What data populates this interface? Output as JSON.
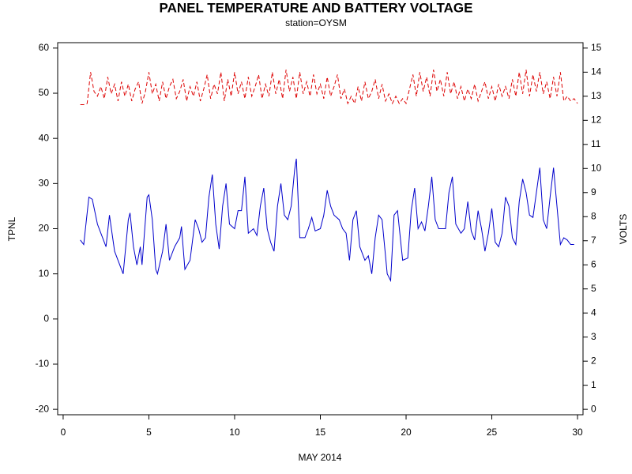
{
  "chart_data": {
    "type": "line",
    "title": "PANEL TEMPERATURE AND BATTERY VOLTAGE",
    "subtitle": "station=OYSM",
    "x_label": "MAY 2014",
    "y_label": "TPNL",
    "y2_label": "VOLTS",
    "xlim": [
      -0.32,
      30.32
    ],
    "xticks": [
      0,
      5,
      10,
      15,
      20,
      25,
      30
    ],
    "ylim": [
      -21.2,
      61.2
    ],
    "yticks": [
      -20,
      -10,
      0,
      10,
      20,
      30,
      40,
      50,
      60
    ],
    "y2lim": [
      -0.225,
      15.225
    ],
    "y2ticks": [
      0,
      1,
      2,
      3,
      4,
      5,
      6,
      7,
      8,
      9,
      10,
      11,
      12,
      13,
      14,
      15
    ],
    "series": [
      {
        "name": "TPNL",
        "color": "#0000cc",
        "dashed": false,
        "x": [
          1.0,
          1.2,
          1.5,
          1.7,
          2.0,
          2.3,
          2.5,
          2.7,
          3.0,
          3.2,
          3.5,
          3.8,
          3.9,
          4.1,
          4.3,
          4.5,
          4.6,
          4.9,
          5.0,
          5.2,
          5.4,
          5.5,
          5.8,
          6.0,
          6.2,
          6.5,
          6.8,
          6.9,
          7.1,
          7.4,
          7.7,
          7.9,
          8.1,
          8.3,
          8.5,
          8.7,
          8.9,
          9.1,
          9.3,
          9.5,
          9.7,
          10.0,
          10.2,
          10.4,
          10.6,
          10.8,
          11.1,
          11.3,
          11.5,
          11.7,
          11.9,
          12.1,
          12.3,
          12.5,
          12.7,
          12.9,
          13.1,
          13.3,
          13.5,
          13.6,
          13.8,
          14.1,
          14.3,
          14.5,
          14.7,
          15.0,
          15.2,
          15.4,
          15.6,
          15.8,
          16.1,
          16.3,
          16.5,
          16.7,
          16.9,
          17.1,
          17.3,
          17.6,
          17.8,
          18.0,
          18.2,
          18.4,
          18.6,
          18.9,
          19.1,
          19.3,
          19.5,
          19.8,
          20.1,
          20.3,
          20.5,
          20.7,
          20.9,
          21.1,
          21.3,
          21.5,
          21.7,
          21.9,
          22.1,
          22.3,
          22.5,
          22.7,
          22.9,
          23.2,
          23.4,
          23.6,
          23.8,
          24.0,
          24.2,
          24.4,
          24.6,
          24.8,
          25.0,
          25.2,
          25.4,
          25.6,
          25.8,
          26.0,
          26.2,
          26.4,
          26.6,
          26.8,
          27.0,
          27.2,
          27.4,
          27.6,
          27.8,
          28.0,
          28.2,
          28.4,
          28.6,
          28.8,
          29.0,
          29.2,
          29.4,
          29.6,
          29.8
        ],
        "values": [
          17.5,
          16.5,
          27,
          26.5,
          21,
          18,
          16,
          23,
          15,
          13,
          10,
          22,
          23.5,
          16,
          12,
          16,
          12,
          27,
          27.5,
          22,
          11,
          10,
          15,
          21,
          13,
          16,
          18,
          20.5,
          11,
          13,
          22,
          20,
          17,
          18,
          27,
          32,
          21,
          15.5,
          25,
          30,
          21,
          20,
          24,
          24,
          31.5,
          19,
          20,
          18.5,
          25,
          29,
          20,
          17,
          15,
          25,
          30,
          23,
          22,
          25,
          33,
          35.5,
          18,
          18,
          20,
          22.5,
          19.5,
          20,
          23,
          28.5,
          25,
          23,
          22,
          20,
          19,
          13,
          22,
          24,
          16,
          13,
          14,
          10,
          18,
          23,
          22,
          10,
          8.5,
          23,
          24,
          13,
          13.5,
          24,
          29,
          20,
          21.5,
          19.5,
          25,
          31.5,
          22,
          20,
          20,
          20,
          28,
          31.5,
          21,
          19,
          20,
          26,
          19.5,
          17.5,
          24,
          20,
          15,
          19,
          24.5,
          17,
          16,
          19,
          27,
          25,
          18,
          16.5,
          26,
          31,
          28,
          23,
          22.5,
          28,
          33.5,
          22,
          20,
          27,
          33.5,
          25,
          16.5,
          18,
          17.5,
          16.5,
          16.5
        ]
      },
      {
        "name": "VOLTS",
        "color": "#dd0000",
        "dashed": true,
        "axis": "y2",
        "x": [
          1.0,
          1.2,
          1.4,
          1.6,
          1.8,
          2.0,
          2.2,
          2.4,
          2.6,
          2.8,
          3.0,
          3.2,
          3.4,
          3.6,
          3.8,
          4.0,
          4.2,
          4.4,
          4.6,
          4.8,
          5.0,
          5.2,
          5.4,
          5.6,
          5.8,
          6.0,
          6.2,
          6.4,
          6.6,
          6.8,
          7.0,
          7.2,
          7.4,
          7.6,
          7.8,
          8.0,
          8.2,
          8.4,
          8.6,
          8.8,
          9.0,
          9.2,
          9.4,
          9.6,
          9.8,
          10.0,
          10.2,
          10.4,
          10.6,
          10.8,
          11.0,
          11.2,
          11.4,
          11.6,
          11.8,
          12.0,
          12.2,
          12.4,
          12.6,
          12.8,
          13.0,
          13.2,
          13.4,
          13.6,
          13.8,
          14.0,
          14.2,
          14.4,
          14.6,
          14.8,
          15.0,
          15.2,
          15.4,
          15.6,
          15.8,
          16.0,
          16.2,
          16.4,
          16.6,
          16.8,
          17.0,
          17.2,
          17.4,
          17.6,
          17.8,
          18.0,
          18.2,
          18.4,
          18.6,
          18.8,
          19.0,
          19.2,
          19.4,
          19.6,
          19.8,
          20.0,
          20.2,
          20.4,
          20.6,
          20.8,
          21.0,
          21.2,
          21.4,
          21.6,
          21.8,
          22.0,
          22.2,
          22.4,
          22.6,
          22.8,
          23.0,
          23.2,
          23.4,
          23.6,
          23.8,
          24.0,
          24.2,
          24.4,
          24.6,
          24.8,
          25.0,
          25.2,
          25.4,
          25.6,
          25.8,
          26.0,
          26.2,
          26.4,
          26.6,
          26.8,
          27.0,
          27.2,
          27.4,
          27.6,
          27.8,
          28.0,
          28.2,
          28.4,
          28.6,
          28.8,
          29.0,
          29.2,
          29.4,
          29.6,
          29.8,
          30.0
        ],
        "values": [
          12.65,
          12.65,
          12.7,
          14.0,
          13.2,
          13.0,
          13.4,
          12.9,
          13.8,
          13.1,
          13.5,
          12.8,
          13.6,
          13.0,
          13.5,
          12.8,
          13.3,
          13.6,
          12.7,
          13.2,
          14.0,
          13.1,
          13.5,
          12.8,
          13.6,
          12.9,
          13.4,
          13.7,
          12.9,
          13.2,
          13.7,
          12.8,
          13.4,
          13.0,
          13.6,
          12.8,
          13.3,
          13.9,
          12.9,
          13.5,
          13.1,
          14.0,
          12.8,
          13.7,
          13.0,
          14.0,
          13.1,
          13.6,
          12.9,
          13.8,
          13.0,
          13.4,
          13.9,
          12.9,
          13.5,
          13.0,
          14.0,
          13.1,
          13.7,
          12.9,
          14.1,
          13.2,
          13.8,
          12.9,
          14.0,
          13.1,
          13.6,
          13.0,
          13.9,
          13.1,
          13.5,
          12.9,
          13.8,
          13.0,
          13.4,
          13.9,
          12.9,
          13.3,
          12.7,
          13.0,
          12.7,
          13.4,
          12.8,
          13.6,
          12.9,
          13.2,
          13.7,
          12.9,
          13.5,
          12.8,
          13.1,
          12.7,
          13.0,
          12.7,
          12.9,
          12.7,
          13.3,
          13.9,
          13.0,
          14.0,
          13.2,
          13.8,
          13.0,
          14.1,
          13.2,
          13.7,
          13.0,
          14.0,
          13.1,
          13.6,
          12.9,
          13.4,
          12.8,
          13.3,
          12.9,
          13.5,
          12.8,
          13.2,
          13.6,
          12.9,
          13.4,
          12.8,
          13.5,
          13.0,
          13.4,
          12.9,
          13.7,
          13.0,
          14.0,
          13.1,
          14.1,
          13.0,
          13.9,
          13.2,
          14.0,
          13.1,
          13.6,
          12.9,
          13.8,
          13.0,
          14.0,
          12.8,
          13.0,
          12.8,
          12.9,
          12.7
        ]
      }
    ]
  }
}
